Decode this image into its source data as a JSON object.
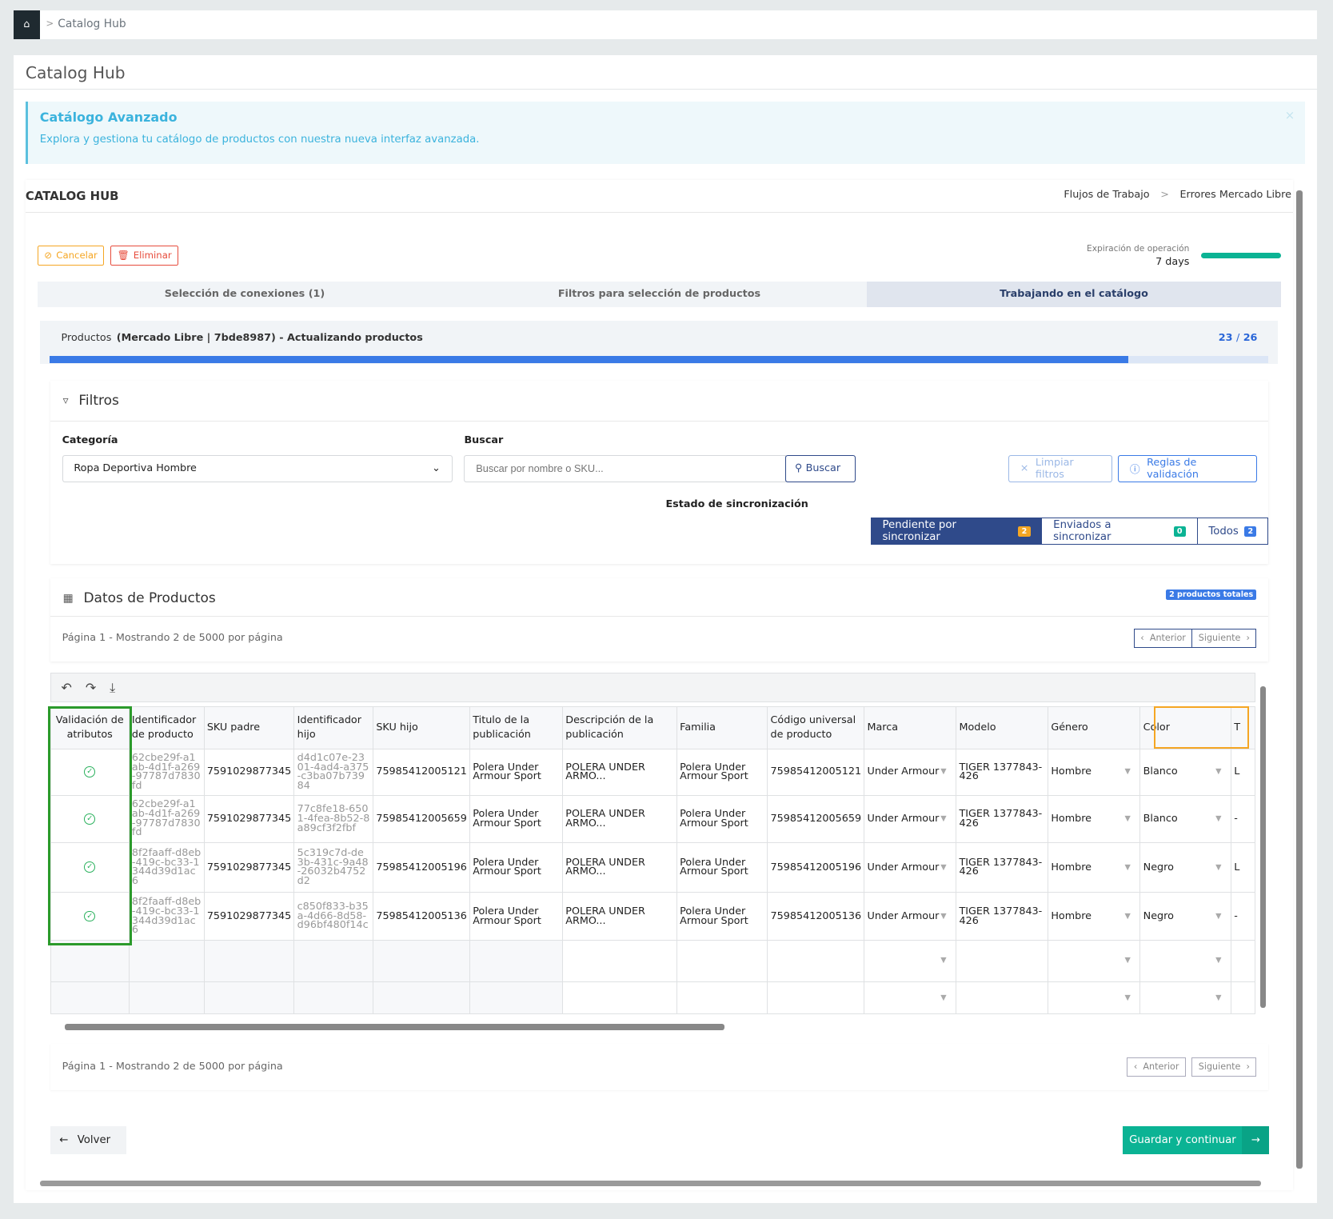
{
  "breadcrumb": {
    "home_icon": "home-icon",
    "separator": ">",
    "current": "Catalog Hub"
  },
  "page": {
    "title": "Catalog Hub"
  },
  "alert": {
    "title": "Catálogo Avanzado",
    "description": "Explora y gestiona tu catálogo de productos con nuestra nueva interfaz avanzada.",
    "close": "×"
  },
  "panel": {
    "title": "CATALOG HUB",
    "crumbs": [
      "Flujos de Trabajo",
      "Errores Mercado Libre"
    ],
    "crumb_sep": ">",
    "cancel": "Cancelar",
    "delete": "Eliminar",
    "expiration_label": "Expiración de operación",
    "expiration_value": "7 days",
    "colors": {
      "accent": "#2f4a8a",
      "progress": "#3a7ae6",
      "success": "#0bb394",
      "cancel": "#f5a623",
      "delete": "#e74c3c"
    }
  },
  "steps": [
    {
      "label": "Selección de conexiones (1)"
    },
    {
      "label": "Filtros para selección de productos"
    },
    {
      "label": "Trabajando en el catálogo",
      "active": true
    }
  ],
  "products_bar": {
    "label": "Productos",
    "context": "(Mercado Libre | 7bde8987) - Actualizando productos",
    "current": "23",
    "sep": "/",
    "total": "26",
    "progress_percent": 88.5
  },
  "filters": {
    "title": "Filtros",
    "category_label": "Categoría",
    "category_value": "Ropa Deportiva Hombre",
    "search_label": "Buscar",
    "search_placeholder": "Buscar por nombre o SKU...",
    "search_button": "Buscar",
    "clear_button": "Limpiar filtros",
    "rules_button": "Reglas de validación",
    "sync_label": "Estado de sincronización",
    "sync_options": [
      {
        "label": "Pendiente por sincronizar",
        "count": "2",
        "active": true
      },
      {
        "label": "Enviados a sincronizar",
        "count": "0"
      },
      {
        "label": "Todos",
        "count": "2"
      }
    ]
  },
  "products": {
    "title": "Datos de Productos",
    "total_badge": "2 productos totales",
    "pagination_text": "Página 1 - Mostrando 2 de 5000 por página",
    "prev": "Anterior",
    "next": "Siguiente"
  },
  "grid": {
    "toolbar": [
      "undo-icon",
      "redo-icon",
      "download-icon"
    ],
    "columns": [
      "Validación de atributos",
      "Identificador de producto",
      "SKU padre",
      "Identificador hijo",
      "SKU hijo",
      "Titulo de la publicación",
      "Descripción de la publicación",
      "Familia",
      "Código universal de producto",
      "Marca",
      "Modelo",
      "Género",
      "Color",
      "T"
    ],
    "rows": [
      [
        "valid",
        "62cbe29f-a1ab-4d1f-a269-97787d7830fd",
        "7591029877345",
        "d4d1c07e-2301-4ad4-a375-c3ba07b73984",
        "75985412005121",
        "Polera Under Armour Sport",
        "POLERA UNDER ARMO...",
        "Polera Under Armour Sport",
        "75985412005121",
        "Under Armour",
        "TIGER 1377843-426",
        "Hombre",
        "Blanco",
        "L"
      ],
      [
        "valid",
        "62cbe29f-a1ab-4d1f-a269-97787d7830fd",
        "7591029877345",
        "77c8fe18-6501-4fea-8b52-8a89cf3f2fbf",
        "75985412005659",
        "Polera Under Armour Sport",
        "POLERA UNDER ARMO...",
        "Polera Under Armour Sport",
        "75985412005659",
        "Under Armour",
        "TIGER 1377843-426",
        "Hombre",
        "Blanco",
        "-"
      ],
      [
        "valid",
        "8f2faaff-d8eb-419c-bc33-1344d39d1ac6",
        "7591029877345",
        "5c319c7d-de3b-431c-9a48-26032b4752d2",
        "75985412005196",
        "Polera Under Armour Sport",
        "POLERA UNDER ARMO...",
        "Polera Under Armour Sport",
        "75985412005196",
        "Under Armour",
        "TIGER 1377843-426",
        "Hombre",
        "Negro",
        "L"
      ],
      [
        "valid",
        "8f2faaff-d8eb-419c-bc33-1344d39d1ac6",
        "7591029877345",
        "c850f833-b35a-4d66-8d58-d96bf480f14c",
        "75985412005136",
        "Polera Under Armour Sport",
        "POLERA UNDER ARMO...",
        "Polera Under Armour Sport",
        "75985412005136",
        "Under Armour",
        "TIGER 1377843-426",
        "Hombre",
        "Negro",
        "-"
      ]
    ]
  },
  "footer": {
    "back": "Volver",
    "save": "Guardar y continuar"
  }
}
